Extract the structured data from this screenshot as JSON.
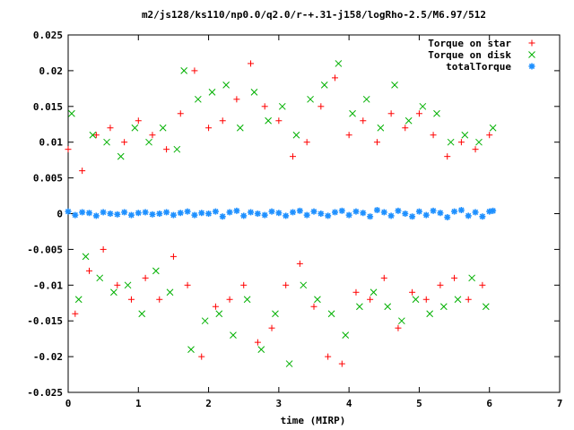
{
  "chart_data": {
    "type": "scatter",
    "title": "m2/js128/ks110/np0.0/q2.0/r-+.31-j158/logRho-2.5/M6.97/512",
    "xlabel": "time (MIRP)",
    "ylabel": "",
    "xlim": [
      0,
      7
    ],
    "ylim": [
      -0.025,
      0.025
    ],
    "grid": false,
    "legend_position": "top-right",
    "x_ticks": [
      {
        "value": 0,
        "label": "0"
      },
      {
        "value": 1,
        "label": "1"
      },
      {
        "value": 2,
        "label": "2"
      },
      {
        "value": 3,
        "label": "3"
      },
      {
        "value": 4,
        "label": "4"
      },
      {
        "value": 5,
        "label": "5"
      },
      {
        "value": 6,
        "label": "6"
      },
      {
        "value": 7,
        "label": "7"
      }
    ],
    "y_ticks": [
      {
        "value": 0.025,
        "label": "0.025"
      },
      {
        "value": 0.02,
        "label": "0.02"
      },
      {
        "value": 0.015,
        "label": "0.015"
      },
      {
        "value": 0.01,
        "label": "0.01"
      },
      {
        "value": 0.005,
        "label": "0.005"
      },
      {
        "value": 0,
        "label": "0"
      },
      {
        "value": -0.005,
        "label": "-0.005"
      },
      {
        "value": -0.01,
        "label": "-0.01"
      },
      {
        "value": -0.015,
        "label": "-0.015"
      },
      {
        "value": -0.02,
        "label": "-0.02"
      },
      {
        "value": -0.025,
        "label": "-0.025"
      }
    ],
    "series": [
      {
        "name": "Torque on star",
        "marker": "plus",
        "color": "#ff0000",
        "x": [
          0.0,
          0.1,
          0.2,
          0.3,
          0.4,
          0.5,
          0.6,
          0.7,
          0.8,
          0.9,
          1.0,
          1.1,
          1.2,
          1.3,
          1.4,
          1.5,
          1.6,
          1.7,
          1.8,
          1.9,
          2.0,
          2.1,
          2.2,
          2.3,
          2.4,
          2.5,
          2.6,
          2.7,
          2.8,
          2.9,
          3.0,
          3.1,
          3.2,
          3.3,
          3.4,
          3.5,
          3.6,
          3.7,
          3.8,
          3.9,
          4.0,
          4.1,
          4.2,
          4.3,
          4.4,
          4.5,
          4.6,
          4.7,
          4.8,
          4.9,
          5.0,
          5.1,
          5.2,
          5.3,
          5.4,
          5.5,
          5.6,
          5.7,
          5.8,
          5.9,
          6.0
        ],
        "y": [
          0.009,
          -0.014,
          0.006,
          -0.008,
          0.011,
          -0.005,
          0.012,
          -0.01,
          0.01,
          -0.012,
          0.013,
          -0.009,
          0.011,
          -0.012,
          0.009,
          -0.006,
          0.014,
          -0.01,
          0.02,
          -0.02,
          0.012,
          -0.013,
          0.013,
          -0.012,
          0.016,
          -0.01,
          0.021,
          -0.018,
          0.015,
          -0.016,
          0.013,
          -0.01,
          0.008,
          -0.007,
          0.01,
          -0.013,
          0.015,
          -0.02,
          0.019,
          -0.021,
          0.011,
          -0.011,
          0.013,
          -0.012,
          0.01,
          -0.009,
          0.014,
          -0.016,
          0.012,
          -0.011,
          0.014,
          -0.012,
          0.011,
          -0.01,
          0.008,
          -0.009,
          0.01,
          -0.012,
          0.009,
          -0.01,
          0.011
        ]
      },
      {
        "name": "Torque on disk",
        "marker": "cross",
        "color": "#00b000",
        "x": [
          0.05,
          0.15,
          0.25,
          0.35,
          0.45,
          0.55,
          0.65,
          0.75,
          0.85,
          0.95,
          1.05,
          1.15,
          1.25,
          1.35,
          1.45,
          1.55,
          1.65,
          1.75,
          1.85,
          1.95,
          2.05,
          2.15,
          2.25,
          2.35,
          2.45,
          2.55,
          2.65,
          2.75,
          2.85,
          2.95,
          3.05,
          3.15,
          3.25,
          3.35,
          3.45,
          3.55,
          3.65,
          3.75,
          3.85,
          3.95,
          4.05,
          4.15,
          4.25,
          4.35,
          4.45,
          4.55,
          4.65,
          4.75,
          4.85,
          4.95,
          5.05,
          5.15,
          5.25,
          5.35,
          5.45,
          5.55,
          5.65,
          5.75,
          5.85,
          5.95,
          6.05
        ],
        "y": [
          0.014,
          -0.012,
          -0.006,
          0.011,
          -0.009,
          0.01,
          -0.011,
          0.008,
          -0.01,
          0.012,
          -0.014,
          0.01,
          -0.008,
          0.012,
          -0.011,
          0.009,
          0.02,
          -0.019,
          0.016,
          -0.015,
          0.017,
          -0.014,
          0.018,
          -0.017,
          0.012,
          -0.012,
          0.017,
          -0.019,
          0.013,
          -0.014,
          0.015,
          -0.021,
          0.011,
          -0.01,
          0.016,
          -0.012,
          0.018,
          -0.014,
          0.021,
          -0.017,
          0.014,
          -0.013,
          0.016,
          -0.011,
          0.012,
          -0.013,
          0.018,
          -0.015,
          0.013,
          -0.012,
          0.015,
          -0.014,
          0.014,
          -0.013,
          0.01,
          -0.012,
          0.011,
          -0.009,
          0.01,
          -0.013,
          0.012
        ]
      },
      {
        "name": "totalTorque",
        "marker": "star",
        "color": "#1e90ff",
        "x": [
          0.0,
          0.1,
          0.2,
          0.3,
          0.4,
          0.5,
          0.6,
          0.7,
          0.8,
          0.9,
          1.0,
          1.1,
          1.2,
          1.3,
          1.4,
          1.5,
          1.6,
          1.7,
          1.8,
          1.9,
          2.0,
          2.1,
          2.2,
          2.3,
          2.4,
          2.5,
          2.6,
          2.7,
          2.8,
          2.9,
          3.0,
          3.1,
          3.2,
          3.3,
          3.4,
          3.5,
          3.6,
          3.7,
          3.8,
          3.9,
          4.0,
          4.1,
          4.2,
          4.3,
          4.4,
          4.5,
          4.6,
          4.7,
          4.8,
          4.9,
          5.0,
          5.1,
          5.2,
          5.3,
          5.4,
          5.5,
          5.6,
          5.7,
          5.8,
          5.9,
          6.0,
          6.05
        ],
        "y": [
          0.0003,
          -0.0002,
          0.0002,
          0.0001,
          -0.0003,
          0.0002,
          0.0,
          -0.0001,
          0.0002,
          -0.0002,
          0.0001,
          0.0002,
          -0.0001,
          0.0,
          0.0002,
          -0.0002,
          0.0001,
          0.0003,
          -0.0002,
          0.0001,
          0.0,
          0.0003,
          -0.0004,
          0.0002,
          0.0004,
          -0.0003,
          0.0002,
          0.0,
          -0.0002,
          0.0003,
          0.0001,
          -0.0003,
          0.0002,
          0.0004,
          -0.0002,
          0.0003,
          0.0,
          -0.0003,
          0.0002,
          0.0004,
          -0.0002,
          0.0003,
          0.0001,
          -0.0004,
          0.0005,
          0.0002,
          -0.0003,
          0.0004,
          0.0,
          -0.0004,
          0.0003,
          -0.0002,
          0.0004,
          0.0001,
          -0.0005,
          0.0003,
          0.0005,
          -0.0003,
          0.0002,
          -0.0004,
          0.0003,
          0.0004
        ]
      }
    ]
  }
}
